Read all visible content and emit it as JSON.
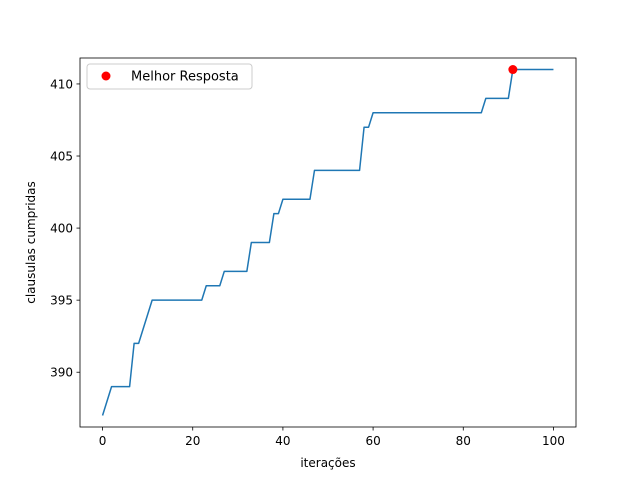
{
  "chart_data": {
    "type": "line",
    "xlabel": "iterações",
    "ylabel": "clausulas cumpridas",
    "xlim": [
      -5,
      105
    ],
    "ylim": [
      386.2,
      411.8
    ],
    "xticks": [
      0,
      20,
      40,
      60,
      80,
      100
    ],
    "yticks": [
      390,
      395,
      400,
      405,
      410
    ],
    "grid": false,
    "legend_position": "top-left",
    "series": [
      {
        "name": "",
        "color": "#1f77b4",
        "x": [
          0,
          2,
          6,
          7,
          8,
          11,
          22,
          23,
          26,
          27,
          32,
          33,
          37,
          38,
          39,
          40,
          46,
          47,
          57,
          58,
          59,
          60,
          84,
          85,
          90,
          91,
          100
        ],
        "y": [
          387,
          389,
          389,
          392,
          392,
          395,
          395,
          396,
          396,
          397,
          397,
          399,
          399,
          401,
          401,
          402,
          402,
          404,
          404,
          407,
          407,
          408,
          408,
          409,
          409,
          411,
          411
        ]
      }
    ],
    "highlight_point": {
      "name": "Melhor Resposta",
      "x": 91,
      "y": 411,
      "color": "#ff0000"
    }
  }
}
